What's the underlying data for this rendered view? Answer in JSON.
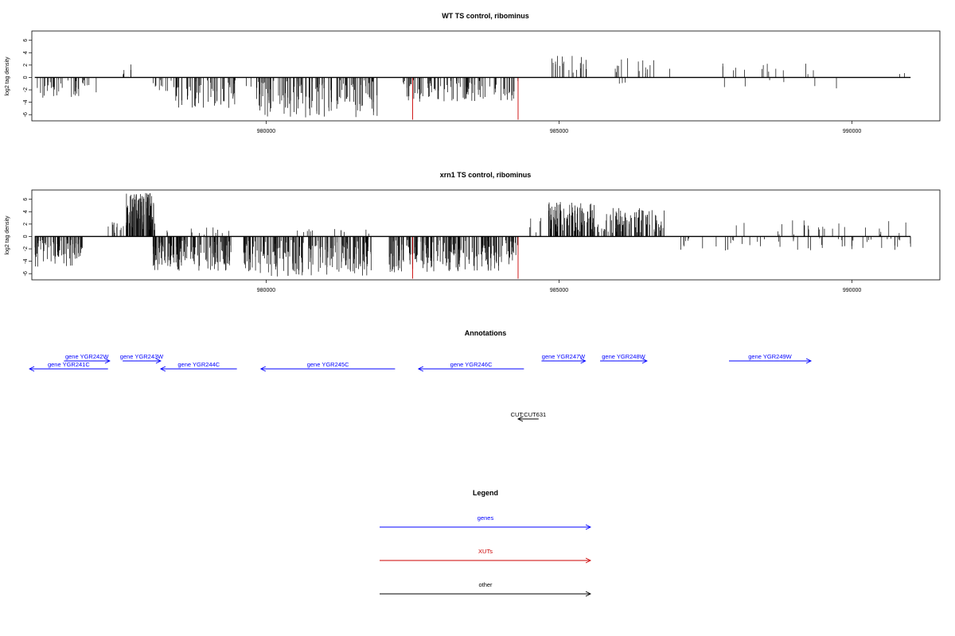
{
  "chart_data": [
    {
      "type": "bar",
      "title": "WT TS control, ribominus",
      "ylabel": "log2 tag density",
      "xlim": [
        976000,
        991500
      ],
      "ylim": [
        -7,
        7.5
      ],
      "yticks": [
        -6,
        -4,
        -2,
        0,
        2,
        4,
        6
      ],
      "xticks": [
        980000,
        985000,
        990000
      ],
      "grid": false,
      "bar_color": "#000000",
      "highlight_color": "#cc0000",
      "highlights": [
        {
          "x": 982500,
          "y": -6.8
        },
        {
          "x": 984300,
          "y": -6.8
        }
      ],
      "regions": [
        {
          "from": 976050,
          "to": 976600,
          "min": -3.5,
          "max": -0.3,
          "sign": -1,
          "n": 20,
          "seed": 11
        },
        {
          "from": 976600,
          "to": 977100,
          "min": -3.2,
          "max": -0.3,
          "sign": -1,
          "n": 18,
          "seed": 12
        },
        {
          "from": 977550,
          "to": 977800,
          "min": 0.5,
          "max": 2.3,
          "sign": 1,
          "n": 5,
          "seed": 13
        },
        {
          "from": 978050,
          "to": 978400,
          "min": -2.2,
          "max": -0.3,
          "sign": -1,
          "n": 10,
          "seed": 14
        },
        {
          "from": 978400,
          "to": 979500,
          "min": -5.0,
          "max": -0.4,
          "sign": -1,
          "n": 60,
          "seed": 15
        },
        {
          "from": 979650,
          "to": 981900,
          "min": -6.5,
          "max": -0.4,
          "sign": -1,
          "n": 130,
          "seed": 16
        },
        {
          "from": 982300,
          "to": 984300,
          "min": -4.0,
          "max": -0.3,
          "sign": -1,
          "n": 95,
          "seed": 17
        },
        {
          "from": 984800,
          "to": 985500,
          "min": 0.4,
          "max": 3.8,
          "sign": 1,
          "n": 20,
          "seed": 18
        },
        {
          "from": 985900,
          "to": 986900,
          "min": 0.4,
          "max": 3.2,
          "sign": 1,
          "n": 15,
          "seed": 19
        },
        {
          "from": 985900,
          "to": 986200,
          "min": -1.2,
          "max": -0.3,
          "sign": -1,
          "n": 3,
          "seed": 20
        },
        {
          "from": 987600,
          "to": 989600,
          "min": 0.4,
          "max": 2.4,
          "sign": 1,
          "n": 14,
          "seed": 21
        },
        {
          "from": 987500,
          "to": 990500,
          "min": -1.8,
          "max": -0.3,
          "sign": -1,
          "n": 6,
          "seed": 22
        },
        {
          "from": 990800,
          "to": 990950,
          "min": 0.5,
          "max": 1.1,
          "sign": 1,
          "n": 2,
          "seed": 23
        }
      ]
    },
    {
      "type": "bar",
      "title": "xrn1 TS control, ribominus",
      "ylabel": "log2 tag density",
      "xlim": [
        976000,
        991500
      ],
      "ylim": [
        -7,
        7.5
      ],
      "yticks": [
        -6,
        -4,
        -2,
        0,
        2,
        4,
        6
      ],
      "xticks": [
        980000,
        985000,
        990000
      ],
      "grid": false,
      "bar_color": "#000000",
      "highlight_color": "#cc0000",
      "highlights": [
        {
          "x": 982500,
          "y": -6.8
        },
        {
          "x": 984300,
          "y": -6.8
        }
      ],
      "regions": [
        {
          "from": 976050,
          "to": 976900,
          "min": -5.0,
          "max": -0.4,
          "sign": -1,
          "n": 70,
          "seed": 31
        },
        {
          "from": 977300,
          "to": 977700,
          "min": 0.3,
          "max": 2.5,
          "sign": 1,
          "n": 12,
          "seed": 32
        },
        {
          "from": 977600,
          "to": 978100,
          "min": 1.0,
          "max": 7.0,
          "sign": 1,
          "n": 90,
          "seed": 33
        },
        {
          "from": 978050,
          "to": 979400,
          "min": -5.6,
          "max": -0.5,
          "sign": -1,
          "n": 140,
          "seed": 34
        },
        {
          "from": 978300,
          "to": 979400,
          "min": 0.2,
          "max": 1.6,
          "sign": 1,
          "n": 12,
          "seed": 35
        },
        {
          "from": 979600,
          "to": 981800,
          "min": -6.5,
          "max": -0.5,
          "sign": -1,
          "n": 200,
          "seed": 36
        },
        {
          "from": 980500,
          "to": 981800,
          "min": 0.2,
          "max": 1.2,
          "sign": 1,
          "n": 12,
          "seed": 37
        },
        {
          "from": 982100,
          "to": 984300,
          "min": -5.8,
          "max": -0.5,
          "sign": -1,
          "n": 200,
          "seed": 38
        },
        {
          "from": 984500,
          "to": 984700,
          "min": 0.5,
          "max": 3.6,
          "sign": 1,
          "n": 5,
          "seed": 39
        },
        {
          "from": 984800,
          "to": 985600,
          "min": 0.5,
          "max": 5.6,
          "sign": 1,
          "n": 90,
          "seed": 40
        },
        {
          "from": 985600,
          "to": 985800,
          "min": 0.3,
          "max": 2.0,
          "sign": 1,
          "n": 10,
          "seed": 41
        },
        {
          "from": 985800,
          "to": 986800,
          "min": 0.5,
          "max": 4.6,
          "sign": 1,
          "n": 80,
          "seed": 42
        },
        {
          "from": 986900,
          "to": 991000,
          "min": -2.3,
          "max": -0.3,
          "sign": -1,
          "n": 50,
          "seed": 43
        },
        {
          "from": 987900,
          "to": 991000,
          "min": 0.3,
          "max": 2.6,
          "sign": 1,
          "n": 25,
          "seed": 44
        }
      ]
    }
  ],
  "annotations": {
    "title": "Annotations",
    "xlim": [
      976000,
      991500
    ],
    "items": [
      {
        "label": "gene YGR241C",
        "start": 975960,
        "end": 977300,
        "strand": -1,
        "color": "#0000ff",
        "row": 2
      },
      {
        "label": "gene YGR242W",
        "start": 976550,
        "end": 977330,
        "strand": 1,
        "color": "#0000ff",
        "row": 1
      },
      {
        "label": "gene YGR243W",
        "start": 977550,
        "end": 978200,
        "strand": 1,
        "color": "#0000ff",
        "row": 1
      },
      {
        "label": "gene YGR244C",
        "start": 978200,
        "end": 979500,
        "strand": -1,
        "color": "#0000ff",
        "row": 2
      },
      {
        "label": "gene YGR245C",
        "start": 979910,
        "end": 982200,
        "strand": -1,
        "color": "#0000ff",
        "row": 2
      },
      {
        "label": "gene YGR246C",
        "start": 982600,
        "end": 984400,
        "strand": -1,
        "color": "#0000ff",
        "row": 2
      },
      {
        "label": "gene YGR247W",
        "start": 984700,
        "end": 985450,
        "strand": 1,
        "color": "#0000ff",
        "row": 1
      },
      {
        "label": "gene YGR248W",
        "start": 985700,
        "end": 986500,
        "strand": 1,
        "color": "#0000ff",
        "row": 1
      },
      {
        "label": "gene YGR249W",
        "start": 987900,
        "end": 989300,
        "strand": 1,
        "color": "#0000ff",
        "row": 1
      },
      {
        "label": "CUT:CUT631",
        "start": 984300,
        "end": 984650,
        "strand": -1,
        "color": "#000000",
        "row": 3
      }
    ]
  },
  "legend": {
    "title": "Legend",
    "items": [
      {
        "label": "genes",
        "color": "#0000ff"
      },
      {
        "label": "XUTs",
        "color": "#cc0000"
      },
      {
        "label": "other",
        "color": "#000000"
      }
    ]
  }
}
